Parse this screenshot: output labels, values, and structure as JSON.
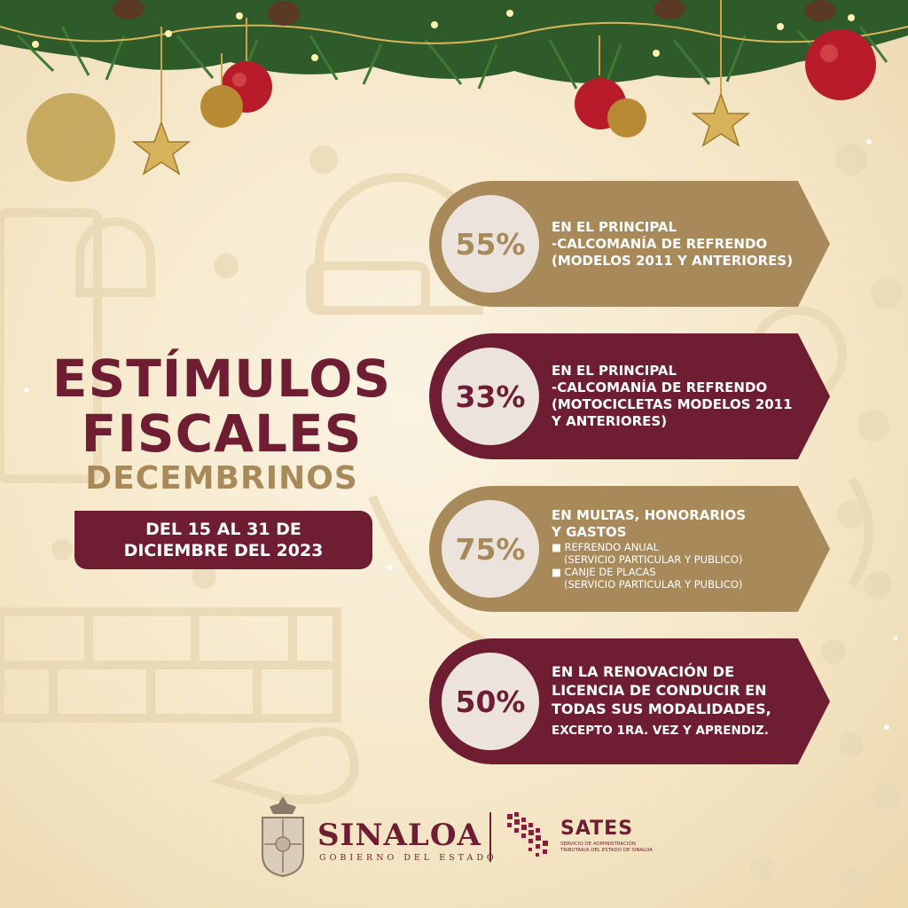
{
  "title": {
    "line1": "ESTÍMULOS",
    "line2": "FISCALES",
    "line3": "DECEMBRINOS"
  },
  "date": {
    "line1": "DEL 15 AL 31 DE",
    "line2": "DICIEMBRE DEL 2023"
  },
  "cards": [
    {
      "percent": "55%",
      "lines": [
        "EN EL PRINCIPAL",
        "-CALCOMANÍA DE REFRENDO",
        "(MODELOS 2011 Y ANTERIORES)"
      ]
    },
    {
      "percent": "33%",
      "lines": [
        "EN EL PRINCIPAL",
        "-CALCOMANÍA DE REFRENDO",
        "(MOTOCICLETAS MODELOS 2011",
        "Y ANTERIORES)"
      ]
    },
    {
      "percent": "75%",
      "heading": [
        "EN MULTAS, HONORARIOS",
        "Y GASTOS"
      ],
      "bullets": [
        {
          "label": "REFRENDO ANUAL",
          "sub": "(SERVICIO PARTICULAR Y PUBLICO)"
        },
        {
          "label": "CANJE DE PLACAS",
          "sub": "(SERVICIO PARTICULAR Y PUBLICO)"
        }
      ]
    },
    {
      "percent": "50%",
      "lines": [
        "EN LA RENOVACIÓN DE",
        "LICENCIA DE CONDUCIR EN",
        "TODAS SUS MODALIDADES,"
      ],
      "last": "EXCEPTO 1RA. VEZ Y APRENDIZ."
    }
  ],
  "footer": {
    "sinaloa": "SINALOA",
    "gobierno": "GOBIERNO DEL ESTADO",
    "sates": "SATES",
    "sates_sub1": "SERVICIO DE ADMINISTRACIÓN",
    "sates_sub2": "TRIBUTARIA DEL ESTADO DE SINALOA"
  },
  "colors": {
    "maroon": "#6e1d33",
    "gold": "#a8895a",
    "background": "#f5e7c8"
  },
  "icons": [
    "christmas-garland-icon",
    "ornament-icon",
    "star-icon",
    "state-seal-icon",
    "sates-logo-icon"
  ]
}
